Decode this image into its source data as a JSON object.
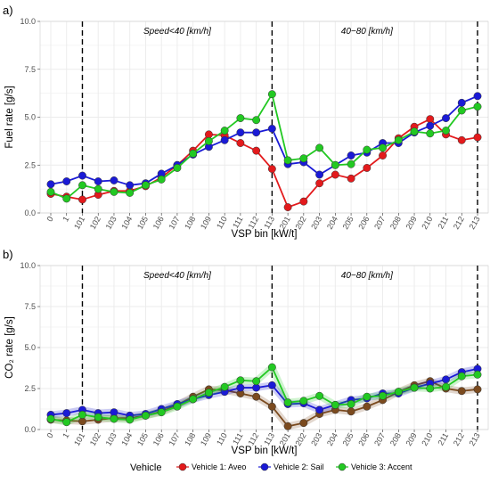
{
  "colors": {
    "aveo": "#e31a1c",
    "sail": "#1a1ad6",
    "accent": "#22c922",
    "aveo_co2": "#7b4a1e",
    "grid": "#ebebeb",
    "vline": "#000000"
  },
  "legend": {
    "title": "Vehicle",
    "items": [
      {
        "label": "Vehicle 1: Aveo",
        "key": "aveo"
      },
      {
        "label": "Vehicle 2: Sail",
        "key": "sail"
      },
      {
        "label": "Vehicle 3: Accent",
        "key": "accent"
      }
    ]
  },
  "chart_data": [
    {
      "panel_label": "a)",
      "type": "line",
      "ylabel": "Fuel  rate [g/s]",
      "xlabel": "VSP bin [kW/t]",
      "ylim": [
        0,
        10
      ],
      "yticks": [
        "0.0",
        "2.5",
        "5.0",
        "7.5",
        "10.0"
      ],
      "categories": [
        "0",
        "1",
        "101",
        "102",
        "103",
        "104",
        "105",
        "106",
        "107",
        "108",
        "109",
        "110",
        "111",
        "112",
        "113",
        "201",
        "202",
        "203",
        "204",
        "205",
        "206",
        "207",
        "208",
        "209",
        "210",
        "211",
        "212",
        "213"
      ],
      "annotations": [
        {
          "text": "Speed<40 [km/h]",
          "anchor_category": "107"
        },
        {
          "text": "40−80 [km/h]",
          "anchor_category": "206"
        }
      ],
      "vlines": [
        "101",
        "113",
        "213"
      ],
      "series": [
        {
          "name": "Vehicle 1: Aveo",
          "key": "aveo",
          "values": [
            1.0,
            0.85,
            0.7,
            0.95,
            1.15,
            1.15,
            1.4,
            1.85,
            2.5,
            3.25,
            4.1,
            4.05,
            3.65,
            3.25,
            2.3,
            0.3,
            0.6,
            1.55,
            2.0,
            1.8,
            2.35,
            3.0,
            3.9,
            4.5,
            4.9,
            4.1,
            3.8,
            3.95
          ]
        },
        {
          "name": "Vehicle 2: Sail",
          "key": "sail",
          "values": [
            1.5,
            1.65,
            1.95,
            1.65,
            1.7,
            1.45,
            1.55,
            2.05,
            2.5,
            3.05,
            3.45,
            3.8,
            4.2,
            4.2,
            4.4,
            2.55,
            2.65,
            2.0,
            2.5,
            3.0,
            3.15,
            3.65,
            3.65,
            4.2,
            4.55,
            4.95,
            5.75,
            6.1
          ]
        },
        {
          "name": "Vehicle 3: Accent",
          "key": "accent",
          "values": [
            1.1,
            0.75,
            1.45,
            1.25,
            1.1,
            1.05,
            1.45,
            1.75,
            2.35,
            3.1,
            3.75,
            4.3,
            4.95,
            4.85,
            6.2,
            2.75,
            2.85,
            3.4,
            2.5,
            2.55,
            3.3,
            3.4,
            3.8,
            4.25,
            4.15,
            4.3,
            5.35,
            5.55
          ]
        }
      ]
    },
    {
      "panel_label": "b)",
      "type": "line",
      "ylabel": "CO₂ rate [g/s]",
      "xlabel": "VSP bin [kW/t]",
      "ylim": [
        0,
        10
      ],
      "yticks": [
        "0.0",
        "2.5",
        "5.0",
        "7.5",
        "10.0"
      ],
      "categories": [
        "0",
        "1",
        "101",
        "102",
        "103",
        "104",
        "105",
        "106",
        "107",
        "108",
        "109",
        "110",
        "111",
        "112",
        "113",
        "201",
        "202",
        "203",
        "204",
        "205",
        "206",
        "207",
        "208",
        "209",
        "210",
        "211",
        "212",
        "213"
      ],
      "annotations": [
        {
          "text": "Speed<40 [km/h]",
          "anchor_category": "107"
        },
        {
          "text": "40−80 [km/h]",
          "anchor_category": "206"
        }
      ],
      "vlines": [
        "101",
        "113",
        "213"
      ],
      "series": [
        {
          "name": "Vehicle 1: Aveo",
          "key": "aveo_co2",
          "values": [
            0.6,
            0.55,
            0.5,
            0.6,
            0.7,
            0.7,
            0.85,
            1.1,
            1.5,
            2.0,
            2.45,
            2.4,
            2.2,
            2.0,
            1.4,
            0.2,
            0.4,
            0.95,
            1.2,
            1.1,
            1.4,
            1.8,
            2.3,
            2.7,
            2.95,
            2.5,
            2.35,
            2.45
          ]
        },
        {
          "name": "Vehicle 2: Sail",
          "key": "sail",
          "values": [
            0.9,
            1.0,
            1.2,
            1.0,
            1.05,
            0.85,
            0.95,
            1.25,
            1.55,
            1.85,
            2.1,
            2.3,
            2.55,
            2.55,
            2.7,
            1.55,
            1.6,
            1.2,
            1.5,
            1.8,
            1.9,
            2.2,
            2.2,
            2.55,
            2.8,
            3.05,
            3.5,
            3.7
          ]
        },
        {
          "name": "Vehicle 3: Accent",
          "key": "accent",
          "values": [
            0.65,
            0.45,
            0.9,
            0.75,
            0.65,
            0.6,
            0.85,
            1.05,
            1.4,
            1.85,
            2.25,
            2.6,
            3.0,
            2.95,
            3.8,
            1.65,
            1.75,
            2.05,
            1.5,
            1.55,
            2.0,
            2.05,
            2.3,
            2.55,
            2.5,
            2.6,
            3.25,
            3.35
          ]
        }
      ]
    }
  ]
}
